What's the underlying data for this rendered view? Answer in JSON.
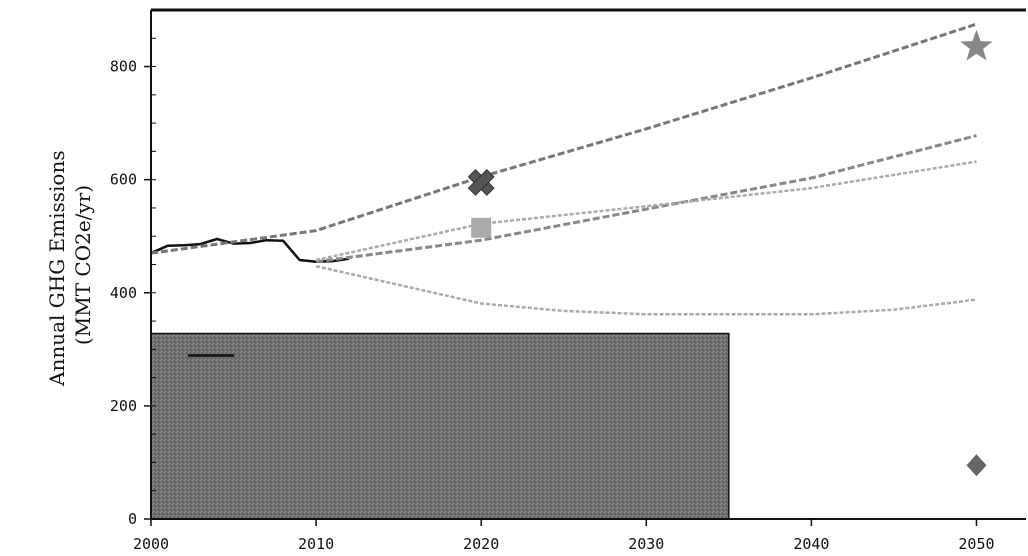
{
  "chart_data": {
    "type": "line",
    "title": "",
    "xlabel": "",
    "ylabel": [
      "Annual GHG Emissions",
      "(MMT CO2e/yr)"
    ],
    "xlim": [
      2000,
      2053
    ],
    "ylim": [
      0,
      900
    ],
    "x_ticks": [
      2000,
      2010,
      2020,
      2030,
      2040,
      2050
    ],
    "y_ticks": [
      0,
      200,
      400,
      600,
      800
    ],
    "grid": false,
    "legend_position": "bottom-left",
    "series": [
      {
        "style": "solid",
        "color": "#111111",
        "points": [
          [
            2000,
            470
          ],
          [
            2001,
            483
          ],
          [
            2002,
            484
          ],
          [
            2003,
            486
          ],
          [
            2004,
            495
          ],
          [
            2005,
            487
          ],
          [
            2006,
            488
          ],
          [
            2007,
            493
          ],
          [
            2008,
            492
          ],
          [
            2009,
            458
          ],
          [
            2010,
            455
          ],
          [
            2011,
            456
          ],
          [
            2012,
            460
          ]
        ]
      },
      {
        "style": "dashed",
        "color": "#777777",
        "points": [
          [
            2000,
            470
          ],
          [
            2010,
            510
          ],
          [
            2020,
            605
          ],
          [
            2030,
            690
          ],
          [
            2040,
            780
          ],
          [
            2050,
            875
          ]
        ]
      },
      {
        "style": "dashed",
        "color": "#888888",
        "points": [
          [
            2010,
            455
          ],
          [
            2020,
            493
          ],
          [
            2030,
            548
          ],
          [
            2040,
            603
          ],
          [
            2050,
            678
          ]
        ]
      },
      {
        "style": "dotted",
        "color": "#aaaaaa",
        "points": [
          [
            2010,
            458
          ],
          [
            2020,
            522
          ],
          [
            2030,
            553
          ],
          [
            2040,
            585
          ],
          [
            2050,
            632
          ]
        ]
      },
      {
        "style": "dotted",
        "color": "#aaaaaa",
        "points": [
          [
            2010,
            447
          ],
          [
            2020,
            381
          ],
          [
            2025,
            368
          ],
          [
            2030,
            362
          ],
          [
            2040,
            362
          ],
          [
            2045,
            370
          ],
          [
            2050,
            388
          ]
        ]
      }
    ],
    "markers": [
      {
        "shape": "star",
        "x": 2050,
        "y": 835,
        "color": "#888888"
      },
      {
        "shape": "cross",
        "x": 2020,
        "y": 595,
        "color": "#555555"
      },
      {
        "shape": "square",
        "x": 2020,
        "y": 515,
        "color": "#aaaaaa"
      },
      {
        "shape": "diamond",
        "x": 2050,
        "y": 95,
        "color": "#666666"
      }
    ],
    "legend": {
      "range_x": [
        2000,
        2035
      ],
      "range_y": [
        0,
        328
      ],
      "entries": [
        {
          "style": "solid",
          "color": "#111111"
        }
      ]
    }
  }
}
